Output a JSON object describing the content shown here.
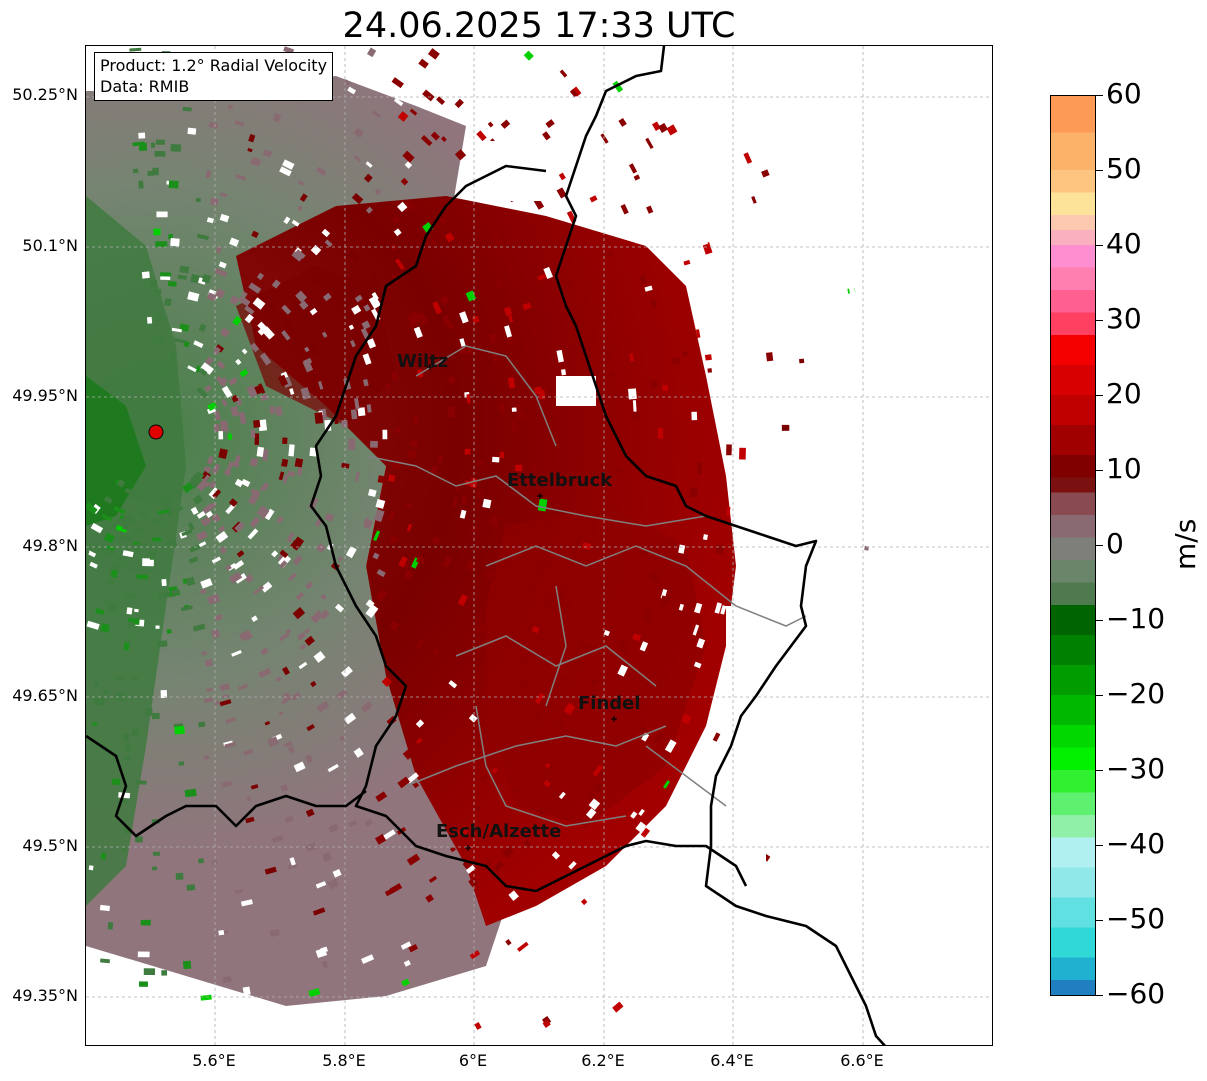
{
  "title": "24.06.2025 17:33 UTC",
  "info_box": {
    "product": "Product: 1.2° Radial Velocity",
    "data_source": "Data: RMIB"
  },
  "axes": {
    "lat_ticks": [
      "50.25°N",
      "50.1°N",
      "49.95°N",
      "49.8°N",
      "49.65°N",
      "49.5°N",
      "49.35°N"
    ],
    "lon_ticks": [
      "5.6°E",
      "5.8°E",
      "6°E",
      "6.2°E",
      "6.4°E",
      "6.6°E"
    ],
    "grid": true
  },
  "cities": [
    {
      "name": "Wiltz"
    },
    {
      "name": "Ettelbruck"
    },
    {
      "name": "Findel"
    },
    {
      "name": "Esch/Alzette"
    }
  ],
  "radar_site": {
    "lat": 49.915,
    "lon": 5.505,
    "color": "#e00000"
  },
  "colorbar": {
    "unit": "m/s",
    "min": -60,
    "max": 60,
    "tick_labels": [
      "60",
      "50",
      "40",
      "30",
      "20",
      "10",
      "0",
      "−10",
      "−20",
      "−30",
      "−40",
      "−50",
      "−60"
    ]
  },
  "colors": {
    "outbound_dark": "#7a0000",
    "outbound_red": "#b00000",
    "neutral_mauve": "#8a6a72",
    "inbound_green": "#3f7a3f",
    "bright_green": "#00c000",
    "border": "#000000",
    "canton_lines": "#808080"
  }
}
